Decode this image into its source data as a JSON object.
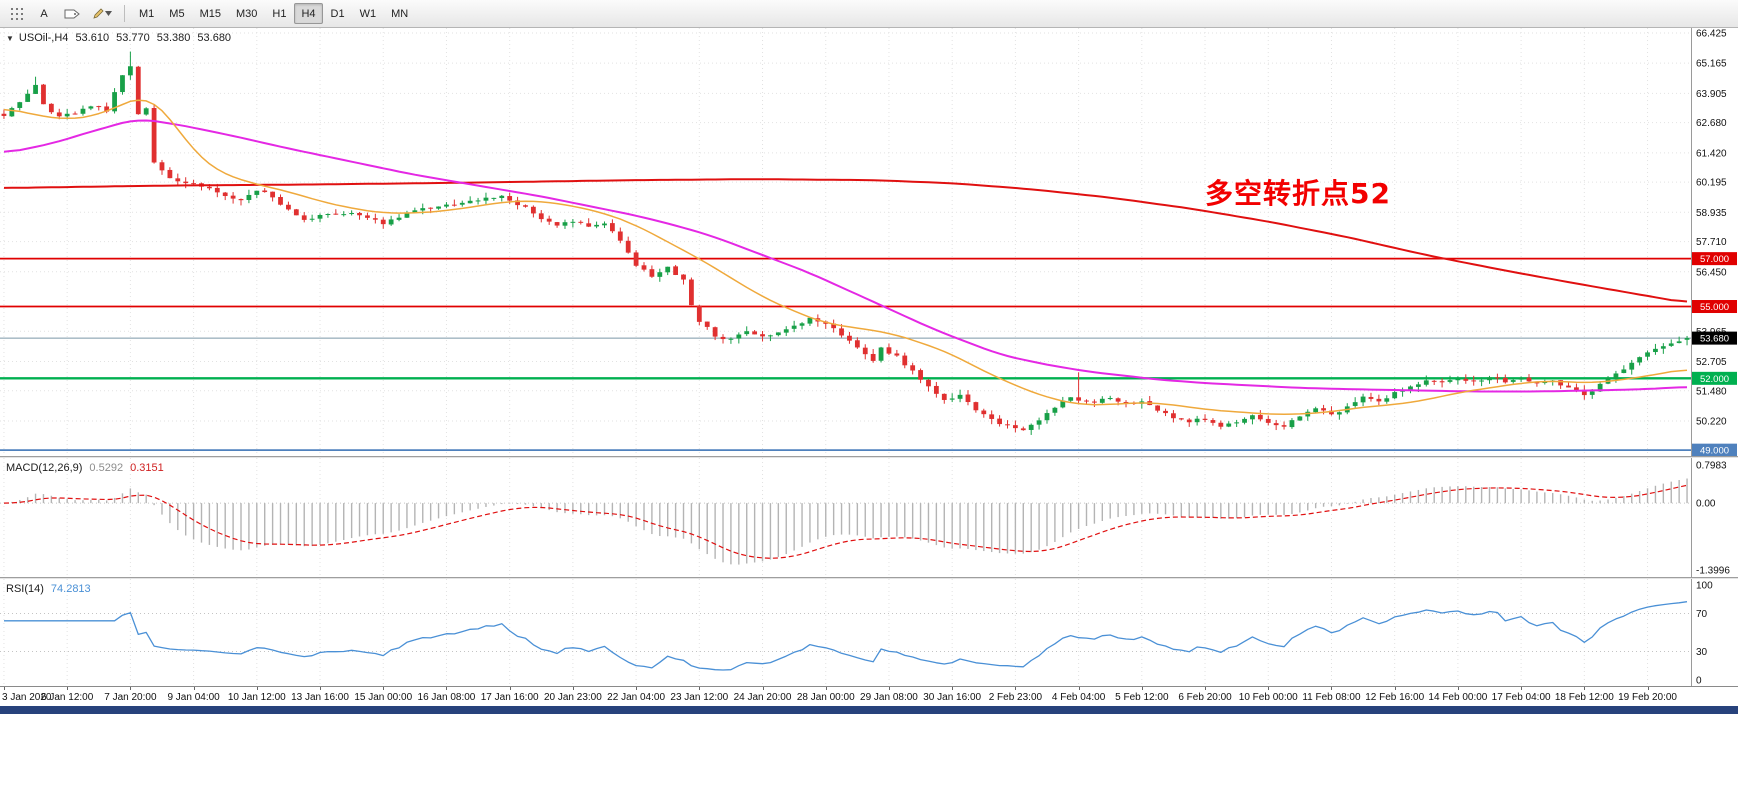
{
  "window_title": "USOil-,H4",
  "toolbar": {
    "text_tool_label": "A",
    "timeframes": [
      {
        "label": "M1",
        "active": false
      },
      {
        "label": "M5",
        "active": false
      },
      {
        "label": "M15",
        "active": false
      },
      {
        "label": "M30",
        "active": false
      },
      {
        "label": "H1",
        "active": false
      },
      {
        "label": "H4",
        "active": true
      },
      {
        "label": "D1",
        "active": false
      },
      {
        "label": "W1",
        "active": false
      },
      {
        "label": "MN",
        "active": false
      }
    ]
  },
  "main_chart": {
    "header": {
      "dropdown_icon": "▼",
      "symbol_period": "USOil-,H4",
      "open": "53.610",
      "high": "53.770",
      "low": "53.380",
      "close": "53.680"
    },
    "annotation": {
      "text": "多空转折点52",
      "color": "#f20000"
    },
    "price_ticks": [
      66.425,
      65.165,
      63.905,
      62.68,
      61.42,
      60.195,
      58.935,
      57.71,
      56.45,
      53.965,
      52.705,
      51.48,
      50.22
    ],
    "levels": [
      {
        "value": 57.0,
        "label": "57.000",
        "color": "#e00000"
      },
      {
        "value": 55.0,
        "label": "55.000",
        "color": "#e00000"
      },
      {
        "value": 52.0,
        "label": "52.000",
        "color": "#00b050"
      },
      {
        "value": 49.0,
        "label": "49.000",
        "color": "#4f81bd"
      }
    ],
    "current_price": {
      "value": 53.68,
      "label": "53.680",
      "line_color": "#7b97a8",
      "badge_color": "#000000"
    }
  },
  "macd_panel": {
    "label": "MACD(12,26,9)",
    "main_value": "0.5292",
    "signal_value": "0.3151",
    "axis_labels": [
      {
        "value": 0.7983,
        "label": "0.7983"
      },
      {
        "value": 0,
        "label": "0.00"
      },
      {
        "value": -1.3996,
        "label": "-1.3996"
      }
    ]
  },
  "rsi_panel": {
    "label": "RSI(14)",
    "value": "74.2813",
    "axis_labels": [
      {
        "value": 100,
        "label": "100"
      },
      {
        "value": 70,
        "label": "70"
      },
      {
        "value": 30,
        "label": "30"
      },
      {
        "value": 0,
        "label": "0"
      }
    ]
  },
  "time_axis": {
    "labels": [
      "3 Jan 2020",
      "6 Jan 12:00",
      "7 Jan 20:00",
      "9 Jan 04:00",
      "10 Jan 12:00",
      "13 Jan 16:00",
      "15 Jan 00:00",
      "16 Jan 08:00",
      "17 Jan 16:00",
      "20 Jan 23:00",
      "22 Jan 04:00",
      "23 Jan 12:00",
      "24 Jan 20:00",
      "28 Jan 00:00",
      "29 Jan 08:00",
      "30 Jan 16:00",
      "2 Feb 23:00",
      "4 Feb 04:00",
      "5 Feb 12:00",
      "6 Feb 20:00",
      "10 Feb 00:00",
      "11 Feb 08:00",
      "12 Feb 16:00",
      "14 Feb 00:00",
      "17 Feb 04:00",
      "18 Feb 12:00",
      "19 Feb 20:00"
    ]
  },
  "chart_data": {
    "type": "candlestick",
    "symbol": "USOil-",
    "timeframe": "H4",
    "candle_count": 214,
    "labels_every_n_candles": 8,
    "price_axis_range": [
      48.76,
      66.63
    ],
    "last_candle": {
      "open": 53.61,
      "high": 53.77,
      "low": 53.38,
      "close": 53.68
    },
    "close_anchors": [
      [
        0,
        63.0
      ],
      [
        2,
        63.6
      ],
      [
        4,
        64.2
      ],
      [
        5,
        63.4
      ],
      [
        7,
        62.9
      ],
      [
        9,
        63.1
      ],
      [
        11,
        63.4
      ],
      [
        13,
        63.2
      ],
      [
        15,
        64.6
      ],
      [
        16,
        65.1
      ],
      [
        17,
        63.1
      ],
      [
        18,
        63.3
      ],
      [
        19,
        61.0
      ],
      [
        21,
        60.3
      ],
      [
        24,
        60.1
      ],
      [
        27,
        59.8
      ],
      [
        30,
        59.4
      ],
      [
        32,
        59.9
      ],
      [
        34,
        59.6
      ],
      [
        36,
        59.0
      ],
      [
        38,
        58.6
      ],
      [
        40,
        58.8
      ],
      [
        44,
        58.9
      ],
      [
        48,
        58.5
      ],
      [
        52,
        59.0
      ],
      [
        56,
        59.2
      ],
      [
        60,
        59.5
      ],
      [
        63,
        59.6
      ],
      [
        66,
        59.1
      ],
      [
        68,
        58.6
      ],
      [
        70,
        58.4
      ],
      [
        72,
        58.6
      ],
      [
        74,
        58.3
      ],
      [
        76,
        58.4
      ],
      [
        78,
        57.8
      ],
      [
        80,
        56.7
      ],
      [
        82,
        56.3
      ],
      [
        84,
        56.6
      ],
      [
        86,
        56.1
      ],
      [
        87,
        55.1
      ],
      [
        88,
        54.4
      ],
      [
        90,
        53.8
      ],
      [
        92,
        53.6
      ],
      [
        94,
        54.0
      ],
      [
        96,
        53.7
      ],
      [
        98,
        53.9
      ],
      [
        100,
        54.2
      ],
      [
        102,
        54.5
      ],
      [
        104,
        54.3
      ],
      [
        106,
        53.8
      ],
      [
        108,
        53.3
      ],
      [
        110,
        52.7
      ],
      [
        111,
        53.3
      ],
      [
        113,
        52.9
      ],
      [
        115,
        52.3
      ],
      [
        117,
        51.6
      ],
      [
        119,
        51.1
      ],
      [
        121,
        51.3
      ],
      [
        123,
        50.7
      ],
      [
        125,
        50.3
      ],
      [
        127,
        50.0
      ],
      [
        129,
        49.9
      ],
      [
        131,
        50.3
      ],
      [
        133,
        50.8
      ],
      [
        135,
        51.2
      ],
      [
        138,
        51.0
      ],
      [
        140,
        51.2
      ],
      [
        142,
        50.9
      ],
      [
        144,
        51.0
      ],
      [
        146,
        50.7
      ],
      [
        148,
        50.4
      ],
      [
        150,
        50.2
      ],
      [
        152,
        50.3
      ],
      [
        154,
        50.0
      ],
      [
        156,
        50.2
      ],
      [
        158,
        50.4
      ],
      [
        160,
        50.1
      ],
      [
        162,
        50.0
      ],
      [
        164,
        50.4
      ],
      [
        166,
        50.7
      ],
      [
        168,
        50.5
      ],
      [
        170,
        50.8
      ],
      [
        172,
        51.2
      ],
      [
        174,
        51.0
      ],
      [
        176,
        51.4
      ],
      [
        178,
        51.7
      ],
      [
        180,
        51.9
      ],
      [
        182,
        51.8
      ],
      [
        184,
        52.0
      ],
      [
        186,
        51.9
      ],
      [
        188,
        52.0
      ],
      [
        190,
        51.9
      ],
      [
        192,
        52.0
      ],
      [
        194,
        51.8
      ],
      [
        196,
        51.9
      ],
      [
        198,
        51.6
      ],
      [
        200,
        51.3
      ],
      [
        202,
        51.7
      ],
      [
        204,
        52.2
      ],
      [
        206,
        52.6
      ],
      [
        208,
        53.1
      ],
      [
        210,
        53.35
      ],
      [
        212,
        53.55
      ],
      [
        213,
        53.68
      ]
    ],
    "wick_overrides": [
      {
        "i": 4,
        "high": 64.6
      },
      {
        "i": 16,
        "high": 65.65
      },
      {
        "i": 136,
        "high": 52.25
      }
    ],
    "ma_fast_anchors": [
      [
        0,
        63.3
      ],
      [
        4,
        63.0
      ],
      [
        8,
        62.8
      ],
      [
        12,
        63.0
      ],
      [
        16,
        63.6
      ],
      [
        18,
        63.8
      ],
      [
        20,
        63.3
      ],
      [
        22,
        62.4
      ],
      [
        24,
        61.5
      ],
      [
        26,
        60.9
      ],
      [
        28,
        60.5
      ],
      [
        32,
        60.1
      ],
      [
        36,
        59.8
      ],
      [
        40,
        59.4
      ],
      [
        44,
        59.1
      ],
      [
        48,
        58.9
      ],
      [
        52,
        58.9
      ],
      [
        56,
        59.0
      ],
      [
        60,
        59.2
      ],
      [
        64,
        59.4
      ],
      [
        68,
        59.4
      ],
      [
        72,
        59.2
      ],
      [
        76,
        58.9
      ],
      [
        80,
        58.4
      ],
      [
        84,
        57.7
      ],
      [
        88,
        57.0
      ],
      [
        92,
        56.2
      ],
      [
        96,
        55.4
      ],
      [
        100,
        54.8
      ],
      [
        104,
        54.3
      ],
      [
        108,
        54.1
      ],
      [
        112,
        53.9
      ],
      [
        116,
        53.5
      ],
      [
        120,
        53.0
      ],
      [
        124,
        52.3
      ],
      [
        128,
        51.7
      ],
      [
        132,
        51.2
      ],
      [
        136,
        50.9
      ],
      [
        140,
        50.9
      ],
      [
        144,
        51.0
      ],
      [
        148,
        50.9
      ],
      [
        152,
        50.7
      ],
      [
        156,
        50.6
      ],
      [
        160,
        50.5
      ],
      [
        164,
        50.5
      ],
      [
        168,
        50.6
      ],
      [
        172,
        50.8
      ],
      [
        176,
        50.9
      ],
      [
        180,
        51.1
      ],
      [
        184,
        51.4
      ],
      [
        188,
        51.6
      ],
      [
        192,
        51.8
      ],
      [
        196,
        51.9
      ],
      [
        200,
        51.8
      ],
      [
        204,
        51.9
      ],
      [
        208,
        52.1
      ],
      [
        213,
        52.4
      ]
    ],
    "ma_mid_anchors": [
      [
        0,
        61.4
      ],
      [
        6,
        61.8
      ],
      [
        12,
        62.4
      ],
      [
        17,
        62.85
      ],
      [
        22,
        62.6
      ],
      [
        28,
        62.2
      ],
      [
        36,
        61.6
      ],
      [
        44,
        61.05
      ],
      [
        52,
        60.5
      ],
      [
        60,
        60.05
      ],
      [
        68,
        59.6
      ],
      [
        74,
        59.2
      ],
      [
        80,
        58.8
      ],
      [
        86,
        58.3
      ],
      [
        90,
        57.9
      ],
      [
        94,
        57.4
      ],
      [
        98,
        56.9
      ],
      [
        102,
        56.4
      ],
      [
        106,
        55.8
      ],
      [
        110,
        55.2
      ],
      [
        114,
        54.6
      ],
      [
        118,
        54.0
      ],
      [
        122,
        53.5
      ],
      [
        126,
        53.0
      ],
      [
        130,
        52.7
      ],
      [
        134,
        52.45
      ],
      [
        138,
        52.25
      ],
      [
        142,
        52.1
      ],
      [
        146,
        51.95
      ],
      [
        152,
        51.8
      ],
      [
        158,
        51.7
      ],
      [
        164,
        51.6
      ],
      [
        170,
        51.55
      ],
      [
        178,
        51.5
      ],
      [
        186,
        51.45
      ],
      [
        194,
        51.45
      ],
      [
        202,
        51.5
      ],
      [
        208,
        51.55
      ],
      [
        213,
        51.65
      ]
    ],
    "ma_slow_anchors": [
      [
        0,
        59.95
      ],
      [
        20,
        60.05
      ],
      [
        40,
        60.1
      ],
      [
        60,
        60.18
      ],
      [
        80,
        60.28
      ],
      [
        95,
        60.32
      ],
      [
        110,
        60.28
      ],
      [
        120,
        60.15
      ],
      [
        130,
        59.9
      ],
      [
        140,
        59.55
      ],
      [
        150,
        59.1
      ],
      [
        160,
        58.55
      ],
      [
        170,
        57.9
      ],
      [
        180,
        57.15
      ],
      [
        190,
        56.5
      ],
      [
        200,
        55.9
      ],
      [
        207,
        55.5
      ],
      [
        213,
        55.15
      ]
    ],
    "macd": {
      "fast": 12,
      "slow": 26,
      "signal": 9,
      "displayed_main": 0.5292,
      "displayed_signal": 0.3151,
      "axis_max": 0.7983,
      "axis_min": -1.3996
    },
    "rsi": {
      "period": 14,
      "displayed_value": 74.2813,
      "axis": [
        0,
        30,
        70,
        100
      ]
    },
    "colors": {
      "up": "#18a048",
      "down": "#e03030",
      "ma_fast": "#efa93c",
      "ma_mid": "#e428e4",
      "ma_slow": "#e01010",
      "macd_hist": "#b4b4b4",
      "macd_signal": "#e01010",
      "rsi_line": "#4a90d6",
      "grid": "#e2e2e2",
      "level_red": "#e00000",
      "level_green": "#00b050",
      "level_blue": "#4f81bd",
      "current_badge": "#000000"
    }
  }
}
